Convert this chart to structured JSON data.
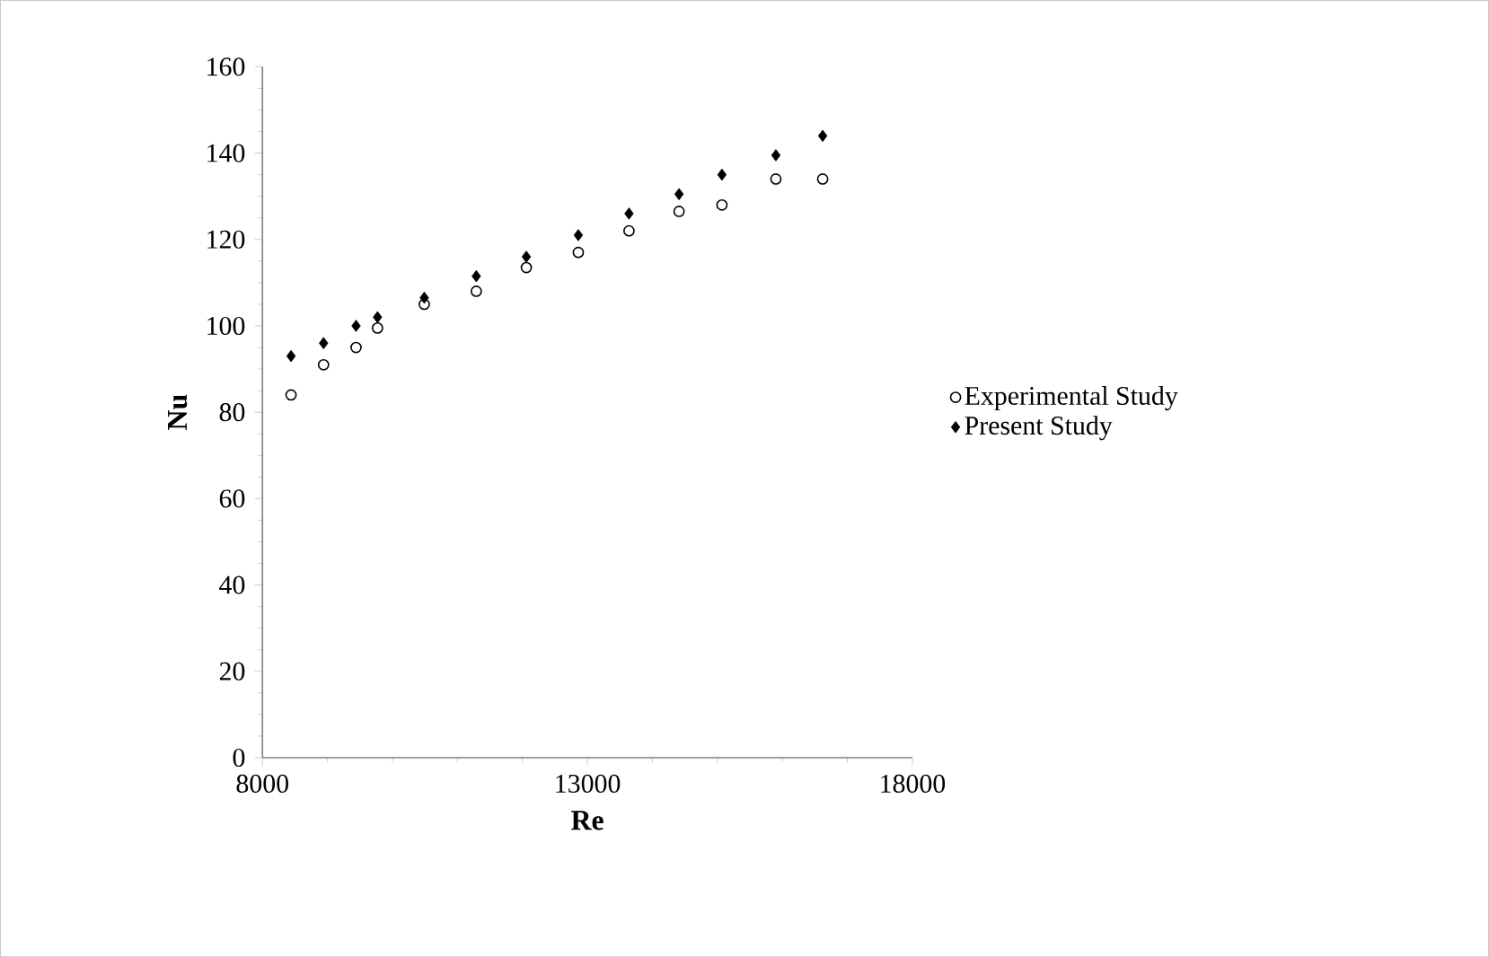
{
  "chart_data": {
    "type": "scatter",
    "xlabel": "Re",
    "ylabel": "Nu",
    "xlim": [
      8000,
      18000
    ],
    "xticks": [
      8000,
      13000,
      18000
    ],
    "ylim": [
      0,
      160
    ],
    "yticks": [
      0,
      20,
      40,
      60,
      80,
      100,
      120,
      140,
      160
    ],
    "legend": "right",
    "grid": false,
    "series": [
      {
        "name": "Experimental Study",
        "color": "#000000",
        "marker": "circle",
        "x": [
          8440,
          8940,
          9440,
          9770,
          10490,
          11290,
          12060,
          12860,
          13640,
          14410,
          15070,
          15900,
          16620
        ],
        "values": [
          84,
          91,
          95,
          99.5,
          105,
          108,
          113.5,
          117,
          122,
          126.5,
          128,
          134,
          134
        ]
      },
      {
        "name": "Present Study",
        "color": "#000000",
        "marker": "diamond",
        "x": [
          8440,
          8940,
          9440,
          9770,
          10490,
          11290,
          12060,
          12860,
          13640,
          14410,
          15070,
          15900,
          16620
        ],
        "values": [
          93,
          96,
          100,
          102,
          106.5,
          111.5,
          116,
          121,
          126,
          130.5,
          135,
          139.5,
          144
        ]
      }
    ]
  }
}
